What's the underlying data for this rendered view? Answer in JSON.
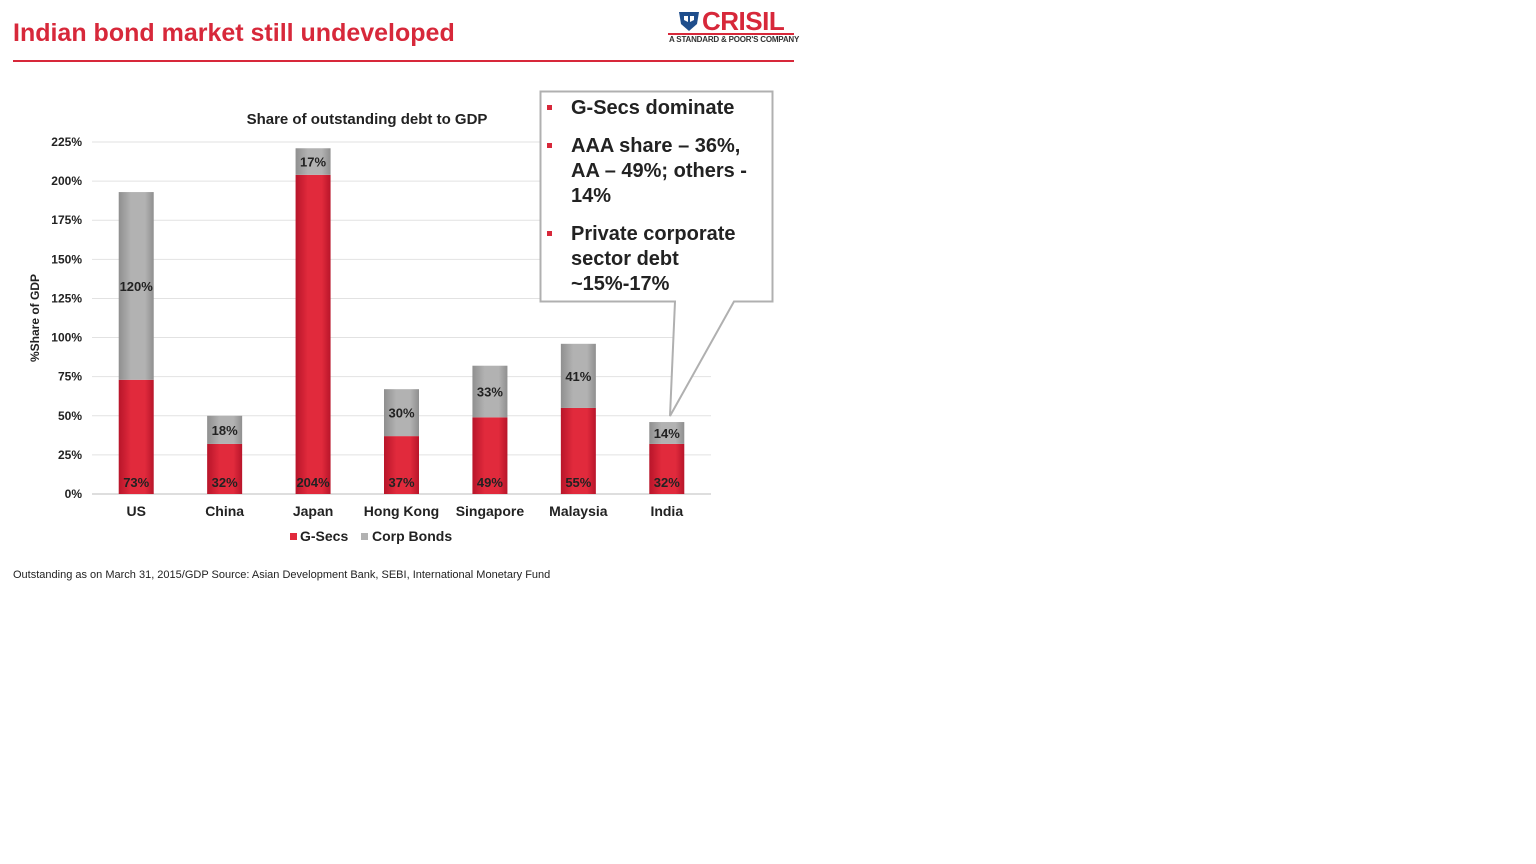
{
  "page": {
    "title": "Indian bond market still undeveloped",
    "footnote": "Outstanding as on March 31, 2015/GDP Source: Asian Development Bank, SEBI, International Monetary Fund"
  },
  "logo": {
    "name": "CRISIL",
    "tagline": "A STANDARD & POOR'S COMPANY"
  },
  "callout": {
    "bullets": [
      "G-Secs dominate",
      "AAA share – 36%, AA – 49%; others - 14%",
      "Private corporate sector debt ~15%-17%"
    ]
  },
  "colors": {
    "accent": "#d7283a",
    "gsecs": "#e12a3c",
    "corp_bonds": "#b2b2b2",
    "text": "#222222"
  },
  "chart_data": {
    "type": "bar",
    "stacked": true,
    "title": "Share of outstanding debt to GDP",
    "ylabel": "%Share of GDP",
    "xlabel": "",
    "ylim": [
      0,
      225
    ],
    "yticks": [
      0,
      25,
      50,
      75,
      100,
      125,
      150,
      175,
      200,
      225
    ],
    "y_tick_labels": [
      "0%",
      "25%",
      "50%",
      "75%",
      "100%",
      "125%",
      "150%",
      "175%",
      "200%",
      "225%"
    ],
    "grid": true,
    "legend": "bottom",
    "categories": [
      "US",
      "China",
      "Japan",
      "Hong Kong",
      "Singapore",
      "Malaysia",
      "India"
    ],
    "series": [
      {
        "name": "G-Secs",
        "values": [
          73,
          32,
          204,
          37,
          49,
          55,
          32
        ],
        "labels": [
          "73%",
          "32%",
          "204%",
          "37%",
          "49%",
          "55%",
          "32%"
        ]
      },
      {
        "name": "Corp Bonds",
        "values": [
          120,
          18,
          17,
          30,
          33,
          41,
          14
        ],
        "labels": [
          "120%",
          "18%",
          "17%",
          "30%",
          "33%",
          "41%",
          "14%"
        ]
      }
    ]
  }
}
